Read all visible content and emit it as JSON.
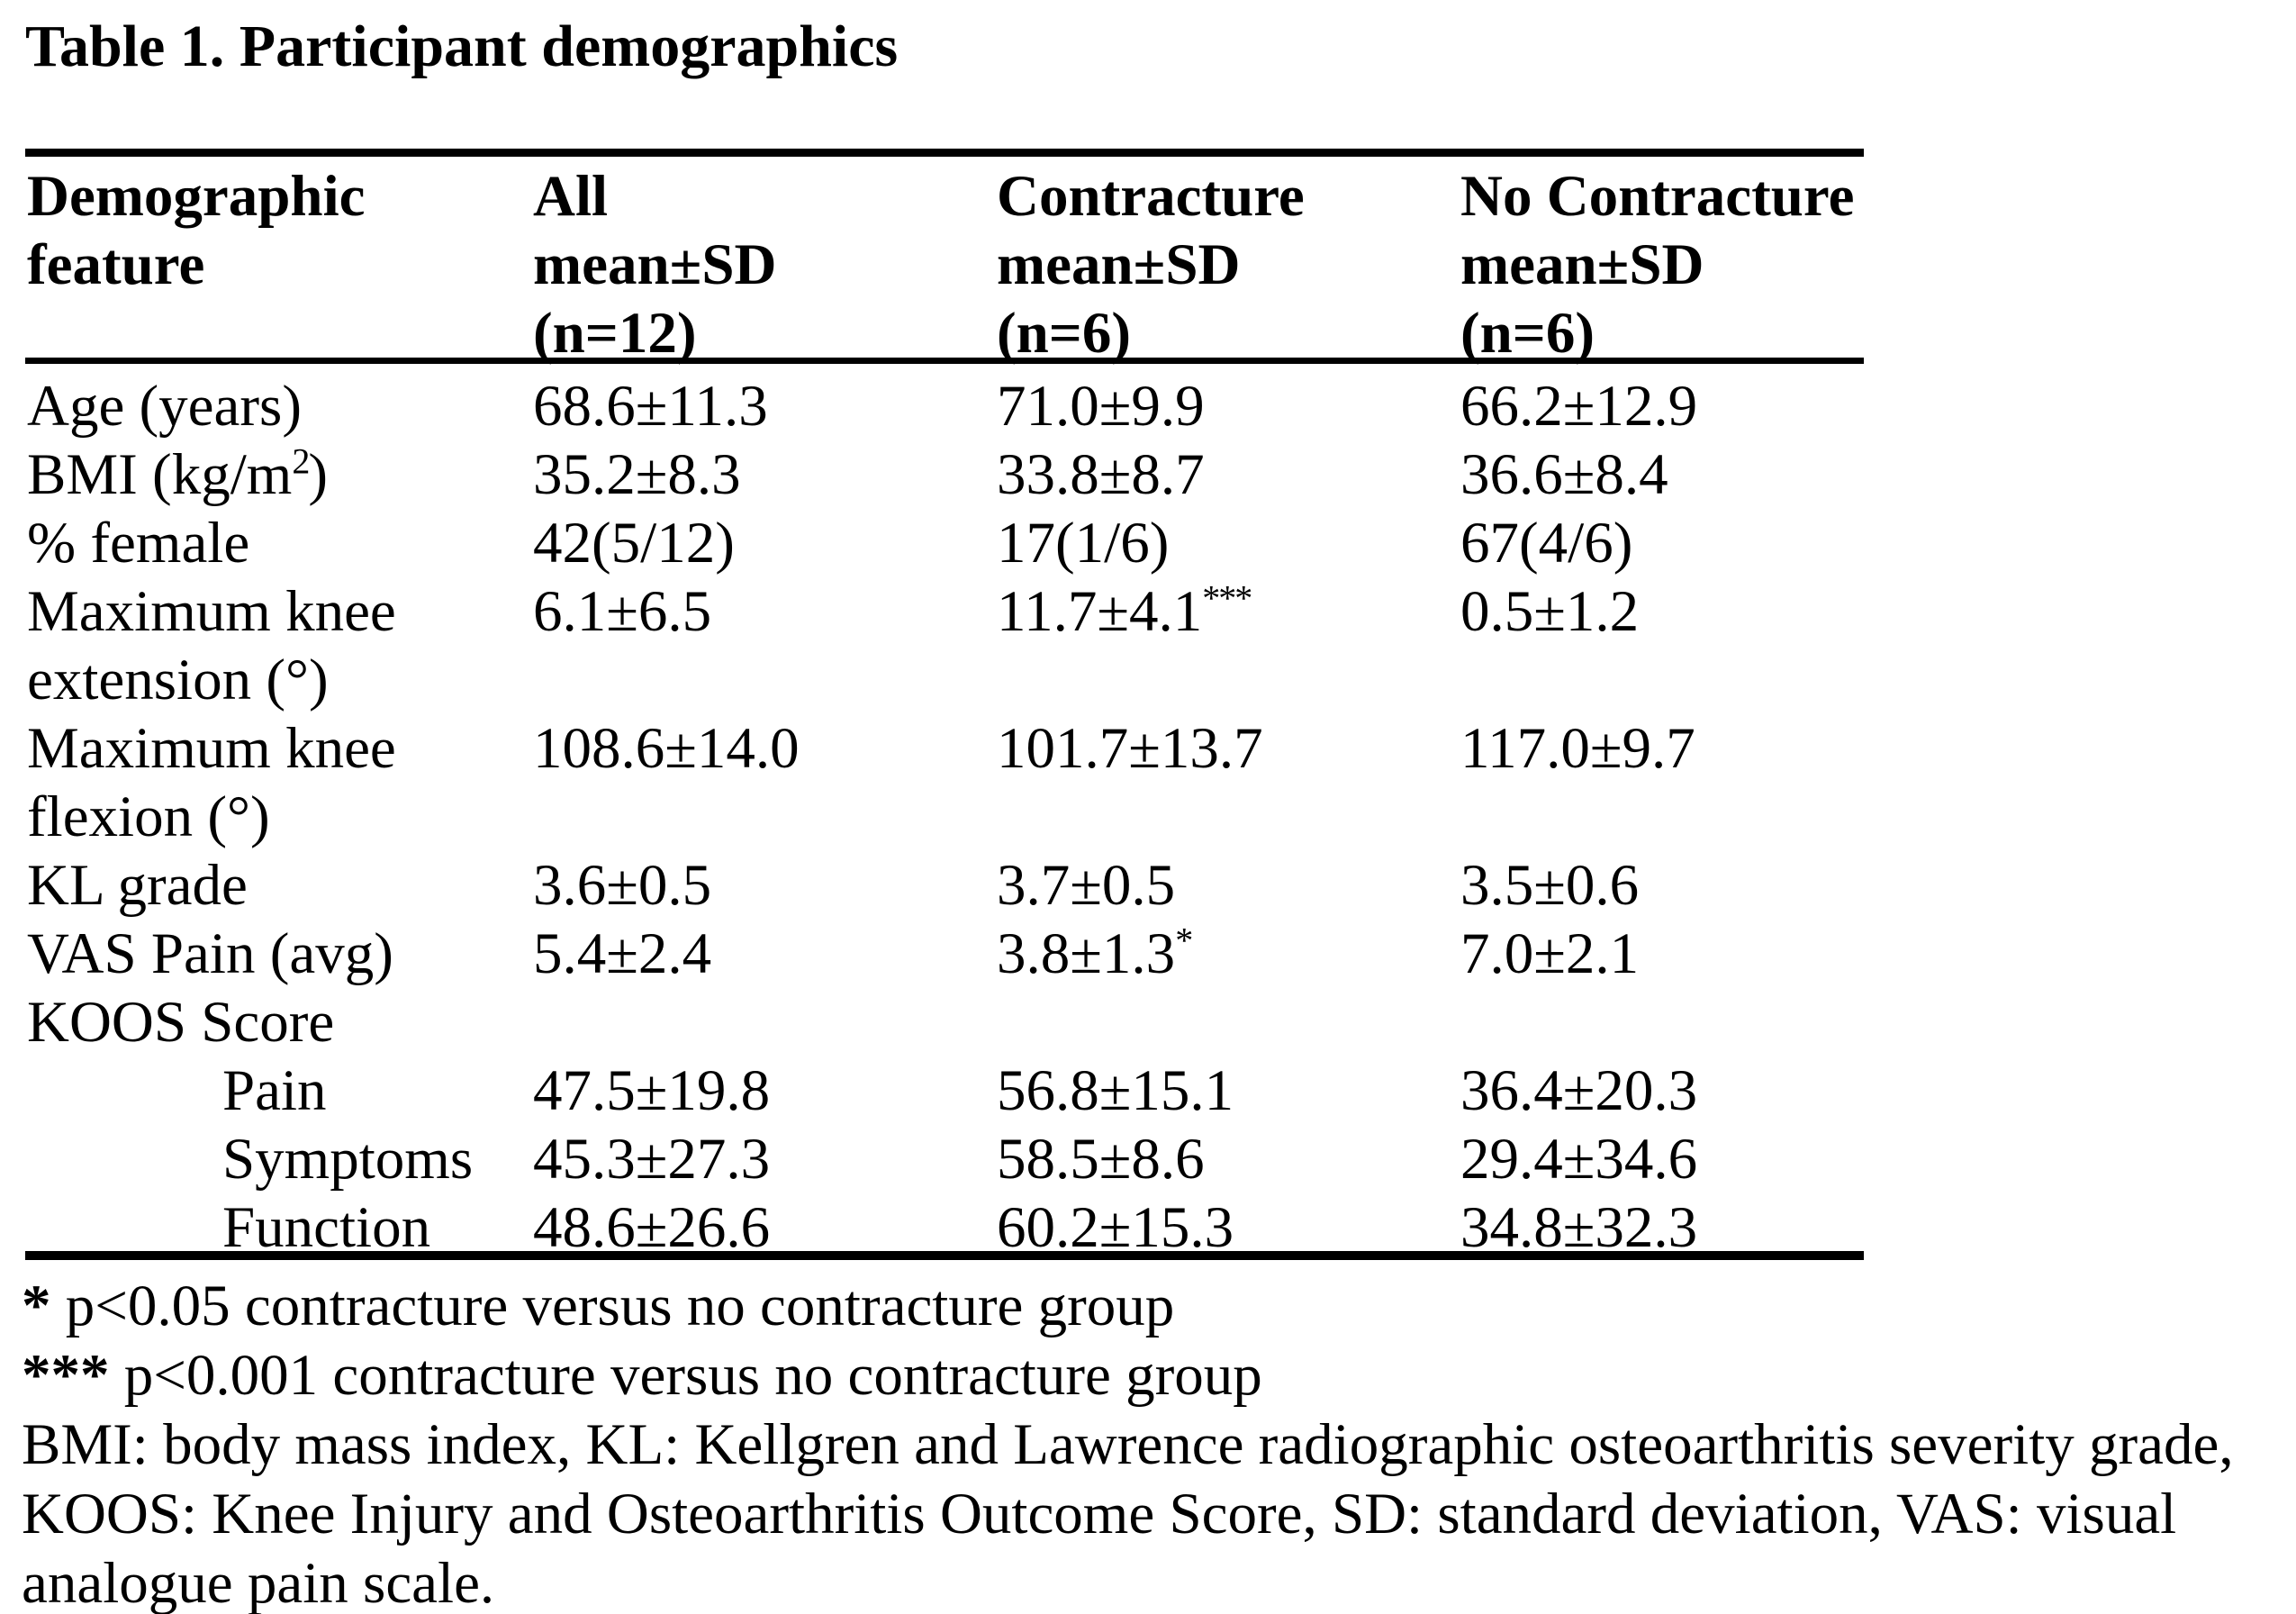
{
  "title": "Table 1. Participant demographics",
  "colors": {
    "text": "#000000",
    "background": "#ffffff",
    "rule": "#000000"
  },
  "table": {
    "header": {
      "feature": [
        "Demographic",
        "feature"
      ],
      "all": [
        "All",
        "mean±SD",
        "(n=12)"
      ],
      "contracture": [
        "Contracture",
        "mean±SD",
        "(n=6)"
      ],
      "no_contracture": [
        "No Contracture",
        "mean±SD",
        "(n=6)"
      ]
    },
    "rows": [
      {
        "feature": "Age (years)",
        "all": "68.6±11.3",
        "contracture": "71.0±9.9",
        "no_contracture": "66.2±12.9"
      },
      {
        "feature": "BMI (kg/m",
        "feature_sup": "2",
        "feature_close": ")",
        "all": "35.2±8.3",
        "contracture": "33.8±8.7",
        "no_contracture": "36.6±8.4"
      },
      {
        "feature": "% female",
        "all": "42(5/12)",
        "contracture": "17(1/6)",
        "no_contracture": "67(4/6)"
      },
      {
        "feature": "Maximum knee",
        "feature_line2": "extension (°)",
        "all": "6.1±6.5",
        "contracture": "11.7±4.1",
        "contracture_sup": "***",
        "no_contracture": "0.5±1.2"
      },
      {
        "feature": "Maximum knee",
        "feature_line2": "flexion (°)",
        "all": "108.6±14.0",
        "contracture": "101.7±13.7",
        "no_contracture": "117.0±9.7"
      },
      {
        "feature": "KL grade",
        "all": "3.6±0.5",
        "contracture": "3.7±0.5",
        "no_contracture": "3.5±0.6"
      },
      {
        "feature": "VAS Pain (avg)",
        "all": "5.4±2.4",
        "contracture": "3.8±1.3",
        "contracture_sup": "*",
        "no_contracture": "7.0±2.1"
      },
      {
        "feature": "KOOS Score"
      },
      {
        "feature": "Pain",
        "all": "47.5±19.8",
        "contracture": "56.8±15.1",
        "no_contracture": "36.4±20.3"
      },
      {
        "feature": "Symptoms",
        "all": "45.3±27.3",
        "contracture": "58.5±8.6",
        "no_contracture": "29.4±34.6"
      },
      {
        "feature": "Function",
        "all": "48.6±26.6",
        "contracture": "60.2±15.3",
        "no_contracture": "34.8±32.3"
      }
    ]
  },
  "footnotes": {
    "significance": [
      {
        "marker": "*",
        "text": " p<0.05 contracture versus no contracture group"
      },
      {
        "marker": "***",
        "text": " p<0.001 contracture versus no contracture group"
      }
    ],
    "abbreviations": "BMI: body mass index, KL: Kellgren and Lawrence radiographic osteoarthritis severity grade, KOOS: Knee Injury and Osteoarthritis Outcome Score, SD: standard deviation, VAS: visual analogue pain scale."
  }
}
